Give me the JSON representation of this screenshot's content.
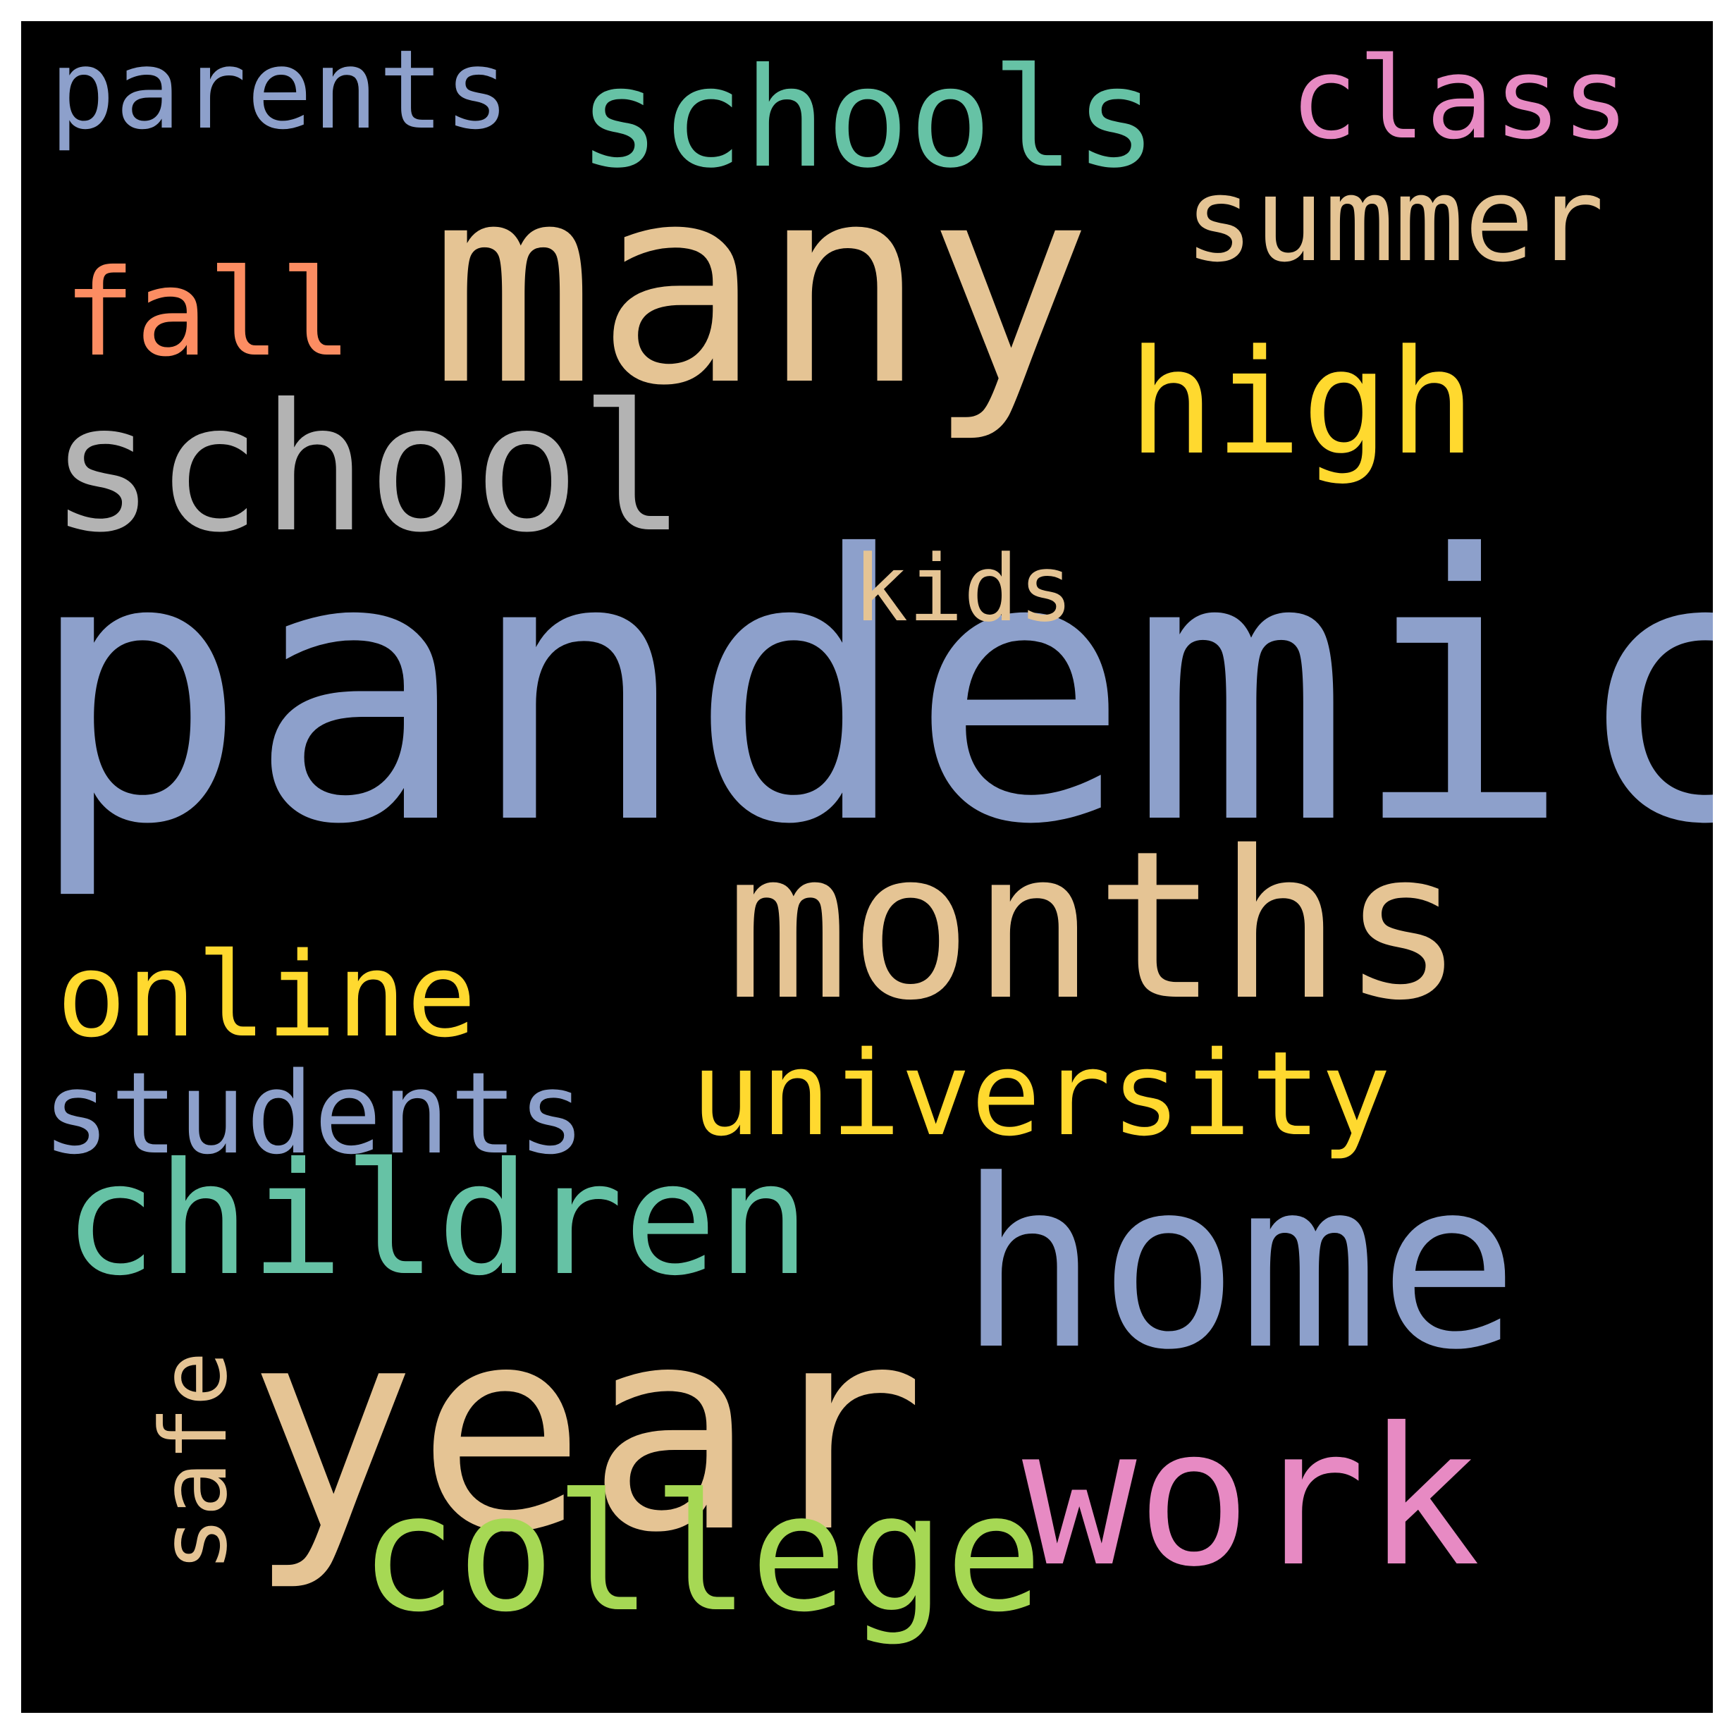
{
  "background_color": "#000000",
  "words": {
    "pandemic": {
      "text": "pandemic",
      "color": "#8da0cb"
    },
    "many": {
      "text": "many",
      "color": "#e5c494"
    },
    "year": {
      "text": "year",
      "color": "#e5c494"
    },
    "home": {
      "text": "home",
      "color": "#8da0cb"
    },
    "months": {
      "text": "months",
      "color": "#e5c494"
    },
    "work": {
      "text": "work",
      "color": "#e78ac3"
    },
    "school": {
      "text": "school",
      "color": "#b3b3b3"
    },
    "children": {
      "text": "children",
      "color": "#66c2a5"
    },
    "college": {
      "text": "college",
      "color": "#a6d854"
    },
    "schools": {
      "text": "schools",
      "color": "#66c2a5"
    },
    "high": {
      "text": "high",
      "color": "#ffd92f"
    },
    "university": {
      "text": "university",
      "color": "#ffd92f"
    },
    "students": {
      "text": "students",
      "color": "#8da0cb"
    },
    "online": {
      "text": "online",
      "color": "#ffd92f"
    },
    "summer": {
      "text": "summer",
      "color": "#e5c494"
    },
    "class": {
      "text": "class",
      "color": "#e78ac3"
    },
    "parents": {
      "text": "parents",
      "color": "#8da0cb"
    },
    "fall": {
      "text": "fall",
      "color": "#fc8d62"
    },
    "kids": {
      "text": "kids",
      "color": "#e5c494"
    },
    "safe": {
      "text": "safe",
      "color": "#e5c494",
      "orientation": "vertical"
    }
  }
}
